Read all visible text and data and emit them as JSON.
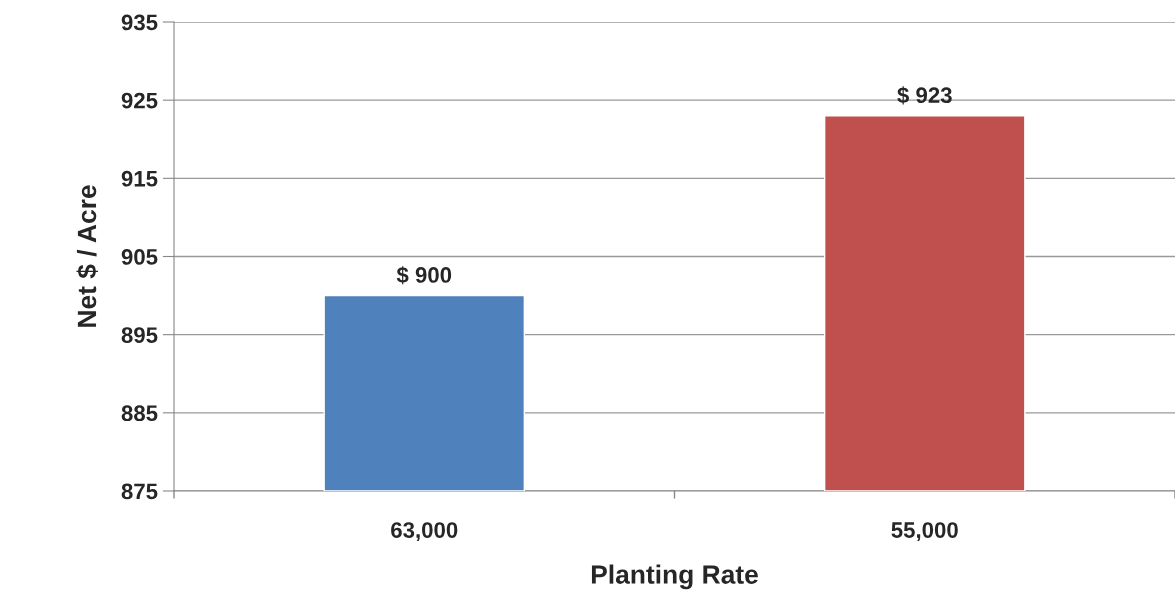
{
  "chart_data": {
    "type": "bar",
    "xlabel": "Planting Rate",
    "ylabel": "Net $ / Acre",
    "categories": [
      "63,000",
      "55,000"
    ],
    "values": [
      900,
      923
    ],
    "colors": [
      "#4f81bd",
      "#c0504d"
    ],
    "value_labels": [
      "$ 900",
      "$ 923"
    ],
    "ylim": [
      875,
      935
    ],
    "yticks": [
      875,
      885,
      895,
      905,
      915,
      925,
      935
    ],
    "grid": "y",
    "legend": false
  }
}
